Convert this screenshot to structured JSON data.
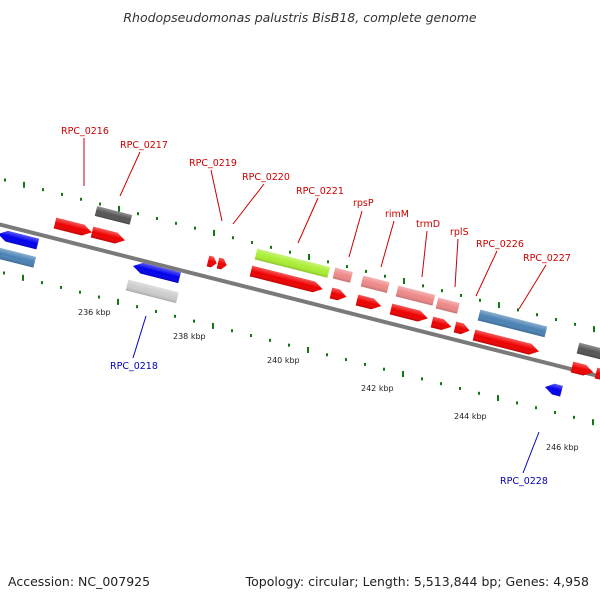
{
  "title": "Rhodopseudomonas palustris BisB18, complete genome",
  "footer": {
    "accession": "Accession: NC_007925",
    "summary": "Topology: circular; Length: 5,513,844 bp; Genes: 4,958"
  },
  "colors": {
    "backbone": "#808080",
    "tick": "#117711",
    "forward_label": "#cc0000",
    "reverse_label": "#0000bb",
    "cds": "#ee0000",
    "gene": "#555555",
    "rrna_like": "#aaee33",
    "trna_like": "#ee8888",
    "steel": "#4a82b4",
    "blue": "#0000ee",
    "light": "#cccccc"
  },
  "scale_labels": [
    "236 kbp",
    "238 kbp",
    "240 kbp",
    "242 kbp",
    "244 kbp",
    "246 kbp"
  ],
  "forward_labels": [
    "RPC_0216",
    "RPC_0217",
    "RPC_0219",
    "RPC_0220",
    "RPC_0221",
    "rpsP",
    "rimM",
    "trmD",
    "rplS",
    "RPC_0226",
    "RPC_0227"
  ],
  "reverse_labels": [
    "RPC_0218",
    "RPC_0228"
  ]
}
